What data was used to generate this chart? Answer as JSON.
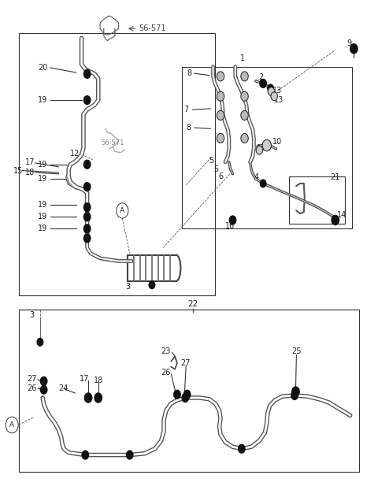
{
  "bg_color": "#ffffff",
  "line_color": "#333333",
  "text_color": "#222222",
  "fig_width": 4.8,
  "fig_height": 6.17,
  "dpi": 100
}
